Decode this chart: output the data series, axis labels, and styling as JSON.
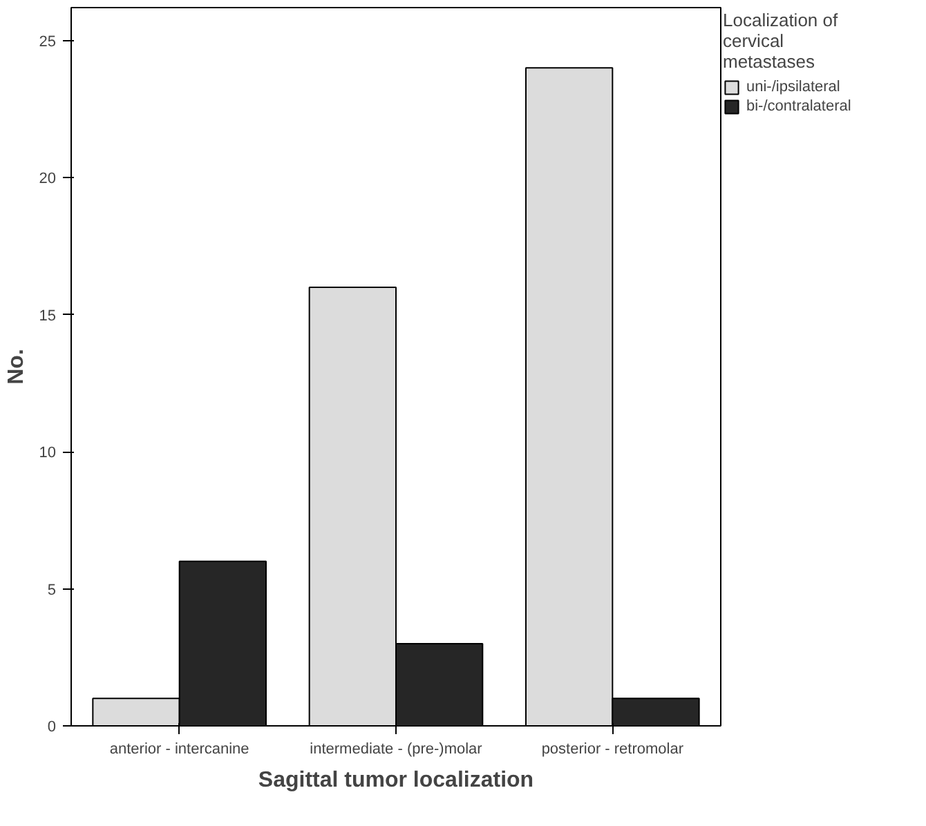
{
  "chart_data": {
    "type": "bar",
    "xlabel": "Sagittal tumor localization",
    "ylabel": "No.",
    "legend_title": "Localization of cervical metastases",
    "categories": [
      "anterior - intercanine",
      "intermediate - (pre-)molar",
      "posterior - retromolar"
    ],
    "series": [
      {
        "name": "uni-/ipsilateral",
        "color": "#dcdcdc",
        "values": [
          1,
          16,
          24
        ]
      },
      {
        "name": "bi-/contralateral",
        "color": "#262626",
        "values": [
          6,
          3,
          1
        ]
      }
    ],
    "ylim": [
      0,
      26.2
    ],
    "yticks": [
      0,
      5,
      10,
      15,
      20,
      25
    ],
    "grid": false,
    "legend": "top right"
  }
}
